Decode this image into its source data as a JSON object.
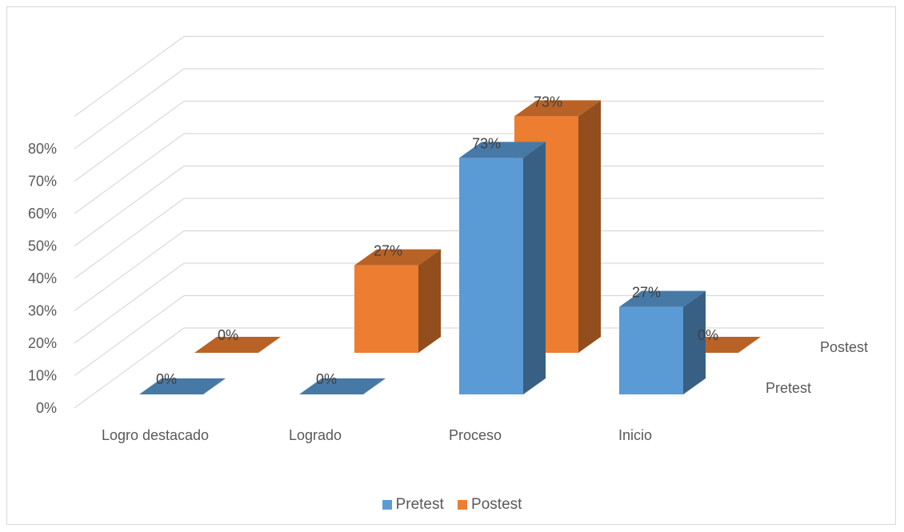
{
  "chart_data": {
    "type": "bar",
    "categories": [
      "Logro destacado",
      "Logrado",
      "Proceso",
      "Inicio"
    ],
    "series": [
      {
        "name": "Pretest",
        "values": [
          0,
          0,
          73,
          27
        ],
        "labels": [
          "0%",
          "0%",
          "73%",
          "27%"
        ],
        "color": "#5B9BD5"
      },
      {
        "name": "Postest",
        "values": [
          0,
          27,
          73,
          0
        ],
        "labels": [
          "0%",
          "27%",
          "73%",
          "0%"
        ],
        "color": "#ED7D31"
      }
    ],
    "yticks": [
      "0%",
      "10%",
      "20%",
      "30%",
      "40%",
      "50%",
      "60%",
      "70%",
      "80%"
    ],
    "ylim": [
      0,
      80
    ],
    "grid": true,
    "legend_position": "bottom"
  }
}
